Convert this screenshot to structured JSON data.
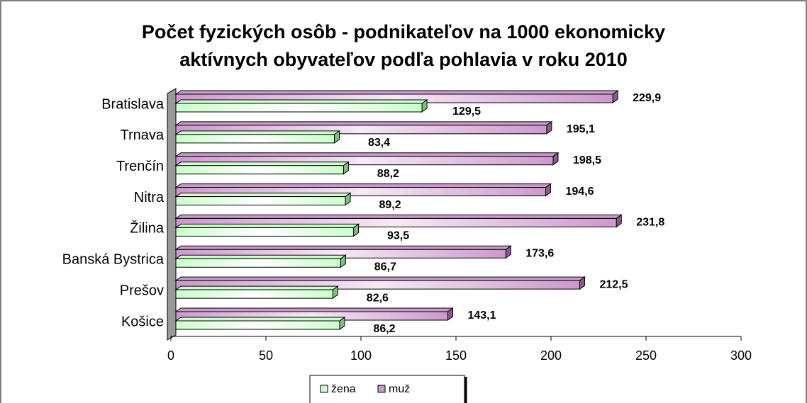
{
  "chart_data": {
    "type": "bar",
    "orientation": "horizontal",
    "title": "Počet fyzických osôb - podnikateľov na 1000 ekonomicky aktívnych obyvateľov podľa pohlavia v roku 2010",
    "categories": [
      "Bratislava",
      "Trnava",
      "Trenčín",
      "Nitra",
      "Žilina",
      "Banská Bystrica",
      "Prešov",
      "Košice"
    ],
    "series": [
      {
        "name": "žena",
        "color": "#ccffcc",
        "values": [
          129.5,
          83.4,
          88.2,
          89.2,
          93.5,
          86.7,
          82.6,
          86.2
        ],
        "value_labels": [
          "129,5",
          "83,4",
          "88,2",
          "89,2",
          "93,5",
          "86,7",
          "82,6",
          "86,2"
        ]
      },
      {
        "name": "muž",
        "color": "#cc99cc",
        "values": [
          229.9,
          195.1,
          198.5,
          194.6,
          231.8,
          173.6,
          212.5,
          143.1
        ],
        "value_labels": [
          "229,9",
          "195,1",
          "198,5",
          "194,6",
          "231,8",
          "173,6",
          "212,5",
          "143,1"
        ]
      }
    ],
    "xlim": [
      0,
      300
    ],
    "xticks": [
      0,
      50,
      100,
      150,
      200,
      250,
      300
    ],
    "legend": "bottom"
  }
}
